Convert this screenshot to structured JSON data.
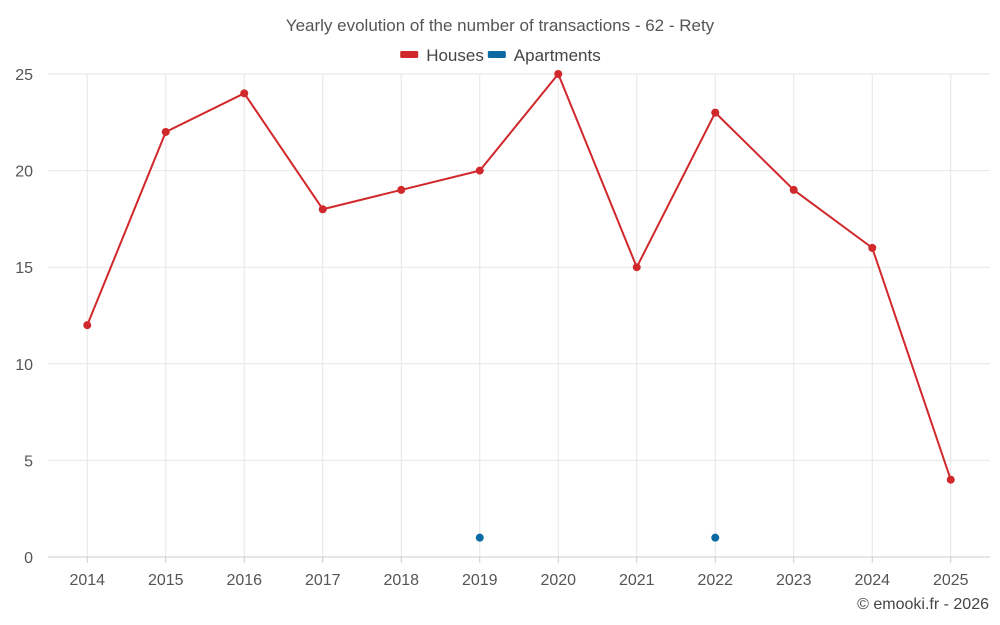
{
  "chart_data": {
    "type": "line",
    "title": "Yearly evolution of the number of transactions - 62 - Rety",
    "categories": [
      "2014",
      "2015",
      "2016",
      "2017",
      "2018",
      "2019",
      "2020",
      "2021",
      "2022",
      "2023",
      "2024",
      "2025"
    ],
    "ylim": [
      0,
      25
    ],
    "yticks": [
      0,
      5,
      10,
      15,
      20,
      25
    ],
    "series": [
      {
        "name": "Houses",
        "color": "#d0282b",
        "values": [
          12,
          22,
          24,
          18,
          19,
          20,
          25,
          15,
          23,
          19,
          16,
          4
        ],
        "line": true
      },
      {
        "name": "Apartments",
        "color": "#0b6aa2",
        "values": [
          null,
          null,
          null,
          null,
          null,
          1,
          null,
          null,
          1,
          null,
          null,
          null
        ],
        "line": false
      }
    ],
    "legend_position": "top-center",
    "grid": true,
    "xlabel": "",
    "ylabel": ""
  },
  "credit": "© emooki.fr - 2026"
}
